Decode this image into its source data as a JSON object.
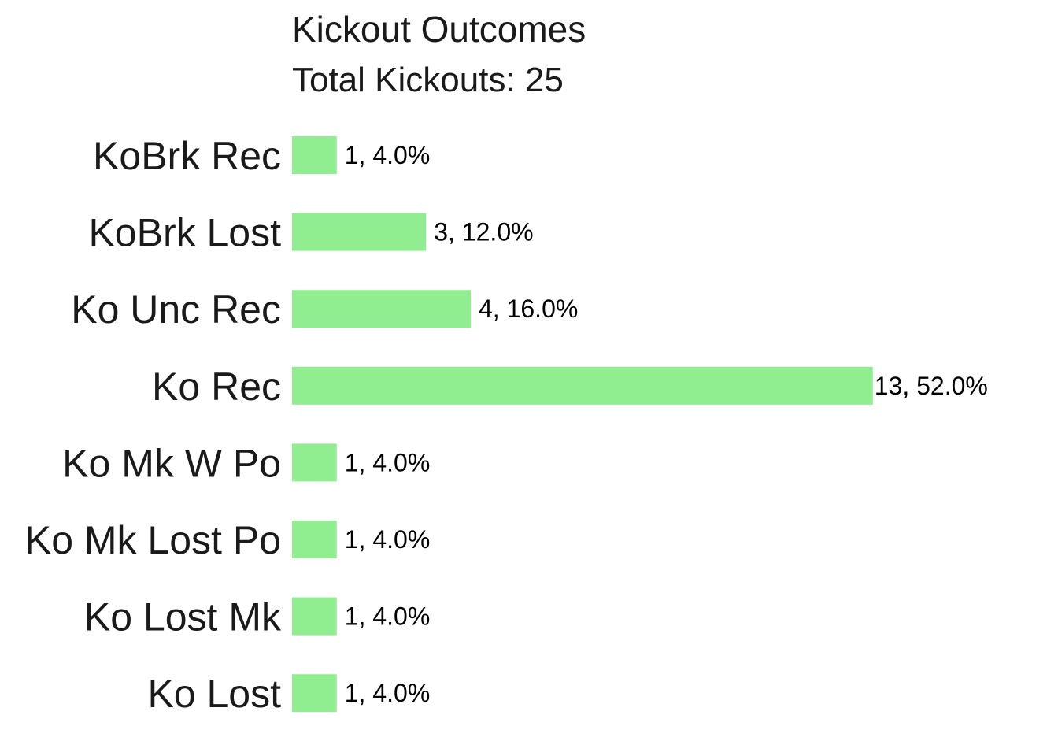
{
  "chart_data": {
    "type": "bar",
    "orientation": "horizontal",
    "title": "Kickout Outcomes",
    "subtitle": "Total Kickouts: 25",
    "categories": [
      "KoBrk Rec",
      "KoBrk Lost",
      "Ko Unc Rec",
      "Ko Rec",
      "Ko Mk W Po",
      "Ko Mk Lost Po",
      "Ko Lost Mk",
      "Ko Lost"
    ],
    "values": [
      1,
      3,
      4,
      13,
      1,
      1,
      1,
      1
    ],
    "data_labels": [
      "1, 4.0%",
      "3, 12.0%",
      "4, 16.0%",
      "13, 52.0%",
      "1, 4.0%",
      "1, 4.0%",
      "1, 4.0%",
      "1, 4.0%"
    ],
    "xlim": [
      0,
      13
    ],
    "grid": false,
    "bar_color": "#90EE90"
  }
}
